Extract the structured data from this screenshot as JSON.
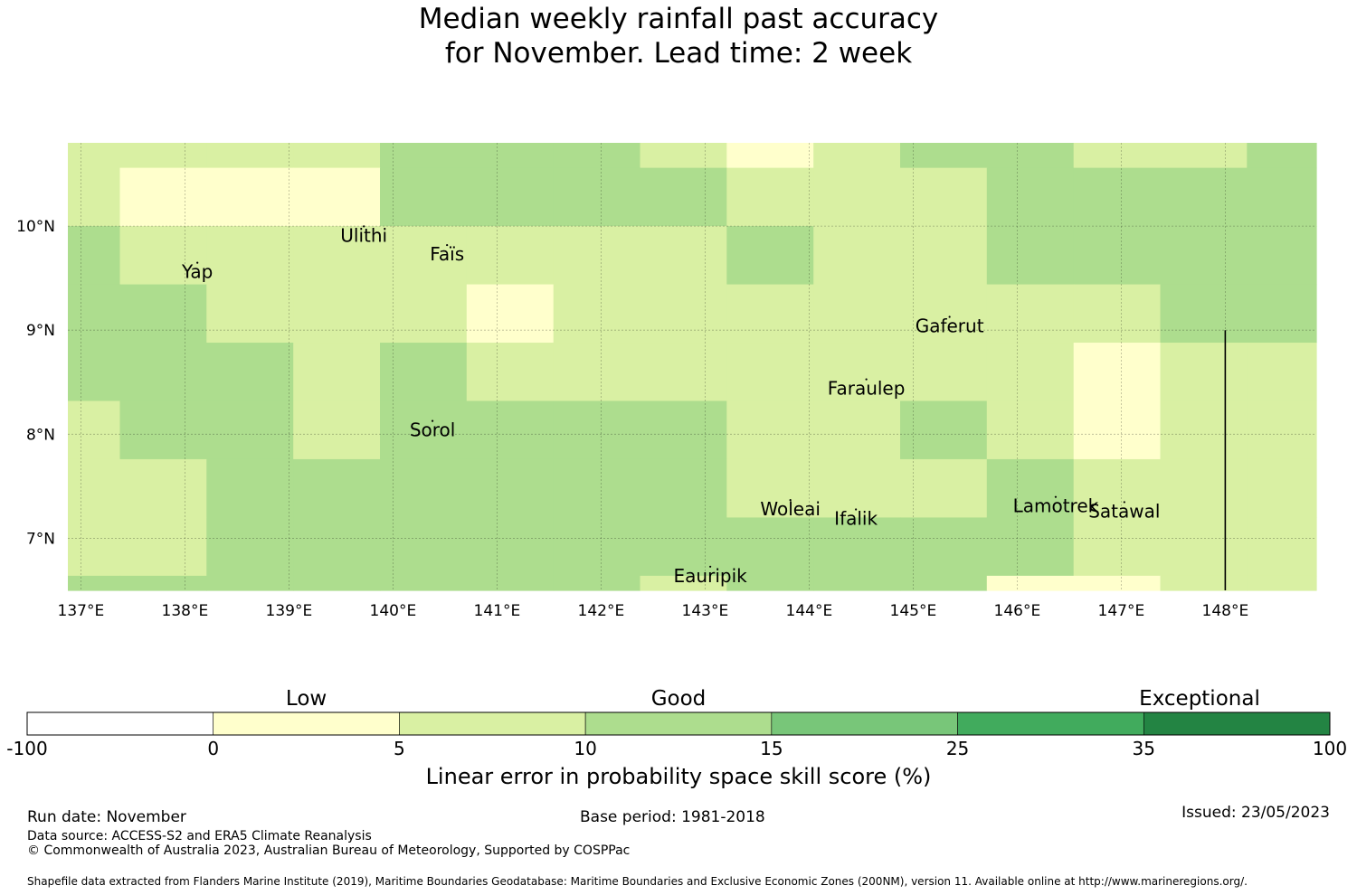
{
  "title": {
    "line1": "Median weekly rainfall past accuracy",
    "line2": "for November. Lead time: 2 week"
  },
  "axes": {
    "lon_ticks": [
      "137°E",
      "138°E",
      "139°E",
      "140°E",
      "141°E",
      "142°E",
      "143°E",
      "144°E",
      "145°E",
      "146°E",
      "147°E",
      "148°E"
    ],
    "lat_ticks": [
      "10°N",
      "9°N",
      "8°N",
      "7°N"
    ],
    "lon_range": [
      136.875,
      148.875
    ],
    "lat_range": [
      6.5,
      10.8
    ]
  },
  "places": [
    {
      "name": "Ulithi",
      "lon": 139.72,
      "lat": 9.85
    },
    {
      "name": "Faïs",
      "lon": 140.52,
      "lat": 9.67
    },
    {
      "name": "Yap",
      "lon": 138.12,
      "lat": 9.5
    },
    {
      "name": "Gaferut",
      "lon": 145.35,
      "lat": 8.98
    },
    {
      "name": "Faraulep",
      "lon": 144.55,
      "lat": 8.38
    },
    {
      "name": "Sorol",
      "lon": 140.38,
      "lat": 7.98
    },
    {
      "name": "Woleai",
      "lon": 143.82,
      "lat": 7.22
    },
    {
      "name": "Ifalik",
      "lon": 144.45,
      "lat": 7.13
    },
    {
      "name": "Lamotrek",
      "lon": 146.37,
      "lat": 7.25
    },
    {
      "name": "Satawal",
      "lon": 147.03,
      "lat": 7.2
    },
    {
      "name": "Eauripik",
      "lon": 143.05,
      "lat": 6.58
    }
  ],
  "grid": {
    "lon_edges": [
      136.875,
      137.375,
      138.208,
      139.042,
      139.875,
      140.708,
      141.542,
      142.375,
      143.208,
      144.042,
      144.875,
      145.708,
      146.542,
      147.375,
      148.208,
      148.875
    ],
    "lat_edges": [
      10.8,
      10.56,
      10.0,
      9.44,
      8.88,
      8.32,
      7.76,
      7.2,
      6.64,
      6.5
    ],
    "categories": [
      [
        2,
        2,
        2,
        2,
        3,
        3,
        3,
        2,
        1,
        2,
        3,
        3,
        2,
        2,
        3
      ],
      [
        2,
        1,
        1,
        1,
        3,
        3,
        3,
        3,
        2,
        2,
        2,
        3,
        3,
        3,
        3
      ],
      [
        3,
        2,
        2,
        2,
        2,
        2,
        2,
        2,
        3,
        2,
        2,
        3,
        3,
        3,
        3
      ],
      [
        3,
        3,
        2,
        2,
        2,
        1,
        2,
        2,
        2,
        2,
        2,
        2,
        2,
        3,
        3
      ],
      [
        3,
        3,
        3,
        2,
        3,
        2,
        2,
        2,
        2,
        2,
        2,
        2,
        1,
        2,
        2
      ],
      [
        2,
        3,
        3,
        2,
        3,
        3,
        3,
        3,
        2,
        2,
        3,
        2,
        1,
        2,
        2
      ],
      [
        2,
        2,
        3,
        3,
        3,
        3,
        3,
        3,
        2,
        2,
        2,
        3,
        2,
        2,
        2
      ],
      [
        2,
        2,
        3,
        3,
        3,
        3,
        3,
        3,
        3,
        3,
        3,
        3,
        2,
        2,
        2
      ],
      [
        3,
        3,
        3,
        3,
        3,
        3,
        3,
        2,
        3,
        3,
        3,
        1,
        1,
        2,
        2
      ]
    ],
    "meridian_marker_lon": 148.0
  },
  "colorbar": {
    "bins": [
      {
        "label": "-100",
        "color": "#ffffff"
      },
      {
        "label": "0",
        "color": "#ffffcc"
      },
      {
        "label": "5",
        "color": "#d9f0a3"
      },
      {
        "label": "10",
        "color": "#addd8e"
      },
      {
        "label": "15",
        "color": "#78c679"
      },
      {
        "label": "25",
        "color": "#41ab5d"
      },
      {
        "label": "35",
        "color": "#238443"
      }
    ],
    "end_label": "100",
    "categories": [
      "Low",
      "Good",
      "Exceptional"
    ],
    "title": "Linear error in probability space skill score (%)"
  },
  "footer": {
    "run_date": "Run date: November",
    "base_period": "Base period: 1981-2018",
    "issued": "Issued: 23/05/2023",
    "data_source": "Data source: ACCESS-S2 and ERA5 Climate Reanalysis",
    "copyright": "© Commonwealth of Australia 2023, Australian Bureau of Meteorology, Supported by COSPPac",
    "shapefile": "Shapefile data extracted from Flanders Marine Institute (2019), Maritime Boundaries Geodatabase: Maritime Boundaries and Exclusive Economic Zones (200NM), version 11. Available online at http://www.marineregions.org/."
  }
}
